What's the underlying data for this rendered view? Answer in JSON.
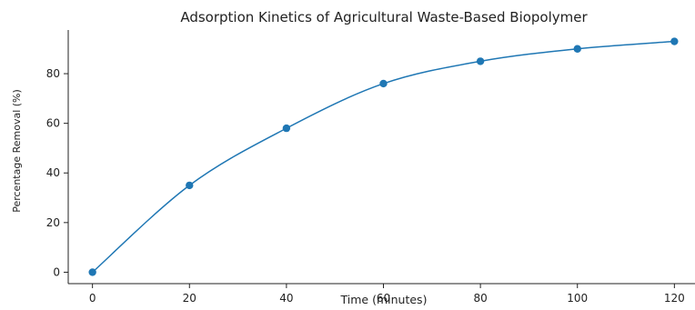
{
  "chart_data": {
    "type": "line",
    "title": "Adsorption Kinetics of Agricultural Waste-Based Biopolymer",
    "xlabel": "Time (minutes)",
    "ylabel": "Percentage Removal (%)",
    "x": [
      0,
      20,
      40,
      60,
      80,
      100,
      120
    ],
    "series": [
      {
        "values": [
          0,
          35,
          58,
          76,
          85,
          90,
          93
        ],
        "color": "#1f77b4",
        "marker": "circle"
      }
    ],
    "xlim": [
      -5,
      125
    ],
    "ylim": [
      -4.6,
      97.6
    ],
    "xticks": [
      0,
      20,
      40,
      60,
      80,
      100,
      120
    ],
    "yticks": [
      0,
      20,
      40,
      60,
      80
    ],
    "grid": false,
    "legend": "none",
    "smooth": true
  }
}
